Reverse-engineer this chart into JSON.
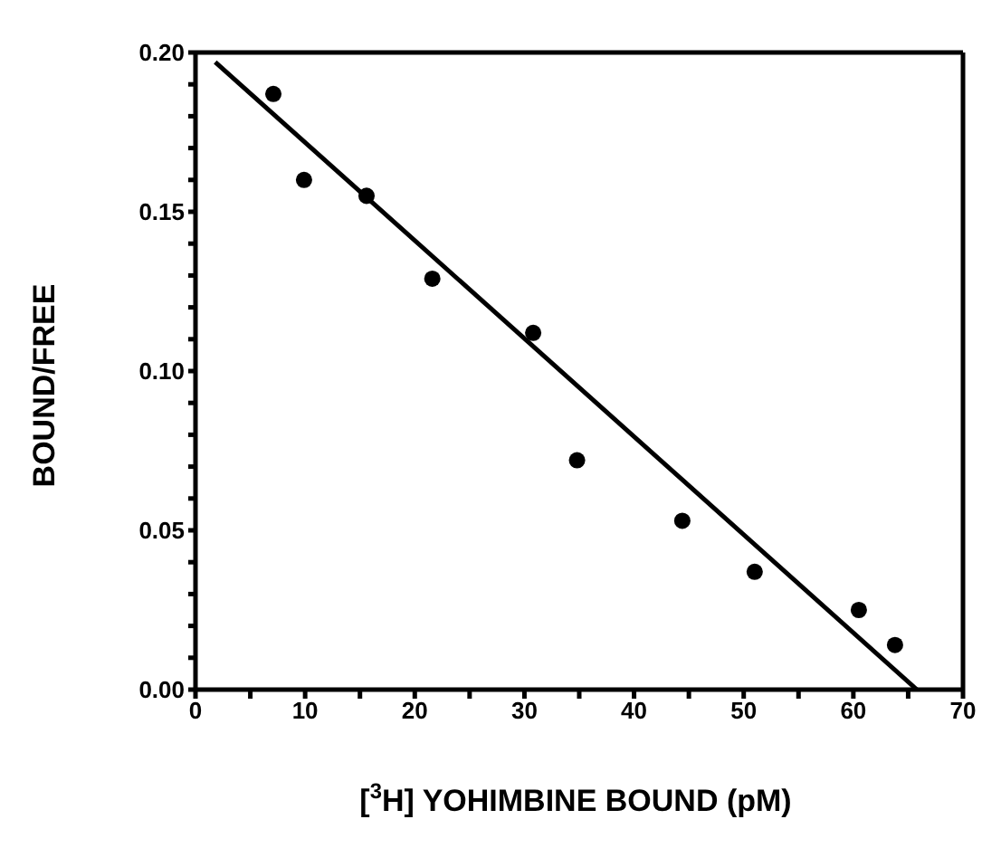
{
  "chart_data": {
    "type": "scatter",
    "xlabel": "[$^{3}$H] YOHIMBINE BOUND (pM)",
    "ylabel": "BOUND/FREE",
    "xlim": [
      0,
      70
    ],
    "ylim": [
      0,
      0.2
    ],
    "xticks": [
      0,
      {
        "value": 5,
        "label": null
      },
      10,
      {
        "value": 15,
        "label": null
      },
      20,
      {
        "value": 25,
        "label": null
      },
      30,
      {
        "value": 35,
        "label": null
      },
      40,
      {
        "value": 45,
        "label": null
      },
      50,
      {
        "value": 55,
        "label": null
      },
      60,
      {
        "value": 65,
        "label": null
      },
      70
    ],
    "yticks": [
      {
        "value": 0,
        "label": "0.00"
      },
      {
        "value": 0.01,
        "label": null
      },
      {
        "value": 0.02,
        "label": null
      },
      {
        "value": 0.03,
        "label": null
      },
      {
        "value": 0.04,
        "label": null
      },
      {
        "value": 0.05,
        "label": "0.05"
      },
      {
        "value": 0.06,
        "label": null
      },
      {
        "value": 0.07,
        "label": null
      },
      {
        "value": 0.08,
        "label": null
      },
      {
        "value": 0.09,
        "label": null
      },
      {
        "value": 0.1,
        "label": "0.10"
      },
      {
        "value": 0.11,
        "label": null
      },
      {
        "value": 0.12,
        "label": null
      },
      {
        "value": 0.13,
        "label": null
      },
      {
        "value": 0.14,
        "label": null
      },
      {
        "value": 0.15,
        "label": "0.15"
      },
      {
        "value": 0.16,
        "label": null
      },
      {
        "value": 0.17,
        "label": null
      },
      {
        "value": 0.18,
        "label": null
      },
      {
        "value": 0.19,
        "label": null
      },
      {
        "value": 0.2,
        "label": "0.20"
      }
    ],
    "marker": "circle",
    "series": [
      {
        "color": "#000000",
        "x": [
          7.1,
          9.9,
          15.6,
          21.6,
          30.8,
          34.8,
          44.4,
          51.0,
          60.5,
          63.8
        ],
        "values": [
          0.187,
          0.16,
          0.155,
          0.129,
          0.112,
          0.072,
          0.053,
          0.037,
          0.025,
          0.014
        ]
      },
      {
        "type": "line",
        "color": "#000000",
        "line_style": "solid",
        "marker": "none",
        "x": [
          1.8,
          65.8
        ],
        "values": [
          0.197,
          0
        ]
      }
    ]
  }
}
